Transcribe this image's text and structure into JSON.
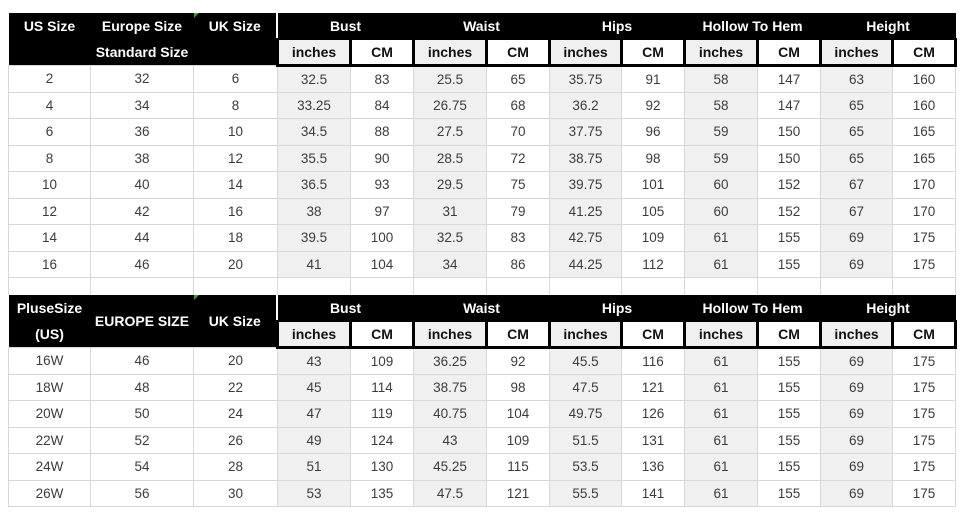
{
  "colors": {
    "header_bg": "#000000",
    "header_text": "#ffffff",
    "shaded_column_bg": "#f0f0f0",
    "cell_bg": "#ffffff",
    "grid_border": "#d8d8d8",
    "data_text": "#3c3c3c",
    "comment_marker_green": "#3f9b35"
  },
  "units": {
    "inches": "inches",
    "cm": "CM"
  },
  "measure_groups": [
    "Bust",
    "Waist",
    "Hips",
    "Hollow To Hem",
    "Height"
  ],
  "standard_table": {
    "headers": {
      "us_line1": "US Size",
      "us_line2": "",
      "europe_line1": "Europe Size",
      "europe_line2": "Standard Size",
      "uk_line1": "UK Size",
      "uk_line2": ""
    },
    "rows": [
      [
        "2",
        "32",
        "6",
        "32.5",
        "83",
        "25.5",
        "65",
        "35.75",
        "91",
        "58",
        "147",
        "63",
        "160"
      ],
      [
        "4",
        "34",
        "8",
        "33.25",
        "84",
        "26.75",
        "68",
        "36.2",
        "92",
        "58",
        "147",
        "65",
        "160"
      ],
      [
        "6",
        "36",
        "10",
        "34.5",
        "88",
        "27.5",
        "70",
        "37.75",
        "96",
        "59",
        "150",
        "65",
        "165"
      ],
      [
        "8",
        "38",
        "12",
        "35.5",
        "90",
        "28.5",
        "72",
        "38.75",
        "98",
        "59",
        "150",
        "65",
        "165"
      ],
      [
        "10",
        "40",
        "14",
        "36.5",
        "93",
        "29.5",
        "75",
        "39.75",
        "101",
        "60",
        "152",
        "67",
        "170"
      ],
      [
        "12",
        "42",
        "16",
        "38",
        "97",
        "31",
        "79",
        "41.25",
        "105",
        "60",
        "152",
        "67",
        "170"
      ],
      [
        "14",
        "44",
        "18",
        "39.5",
        "100",
        "32.5",
        "83",
        "42.75",
        "109",
        "61",
        "155",
        "69",
        "175"
      ],
      [
        "16",
        "46",
        "20",
        "41",
        "104",
        "34",
        "86",
        "44.25",
        "112",
        "61",
        "155",
        "69",
        "175"
      ]
    ]
  },
  "plus_table": {
    "headers": {
      "size_line1": "PluseSize",
      "size_line2": "(US)",
      "europe": "EUROPE SIZE",
      "uk": "UK Size"
    },
    "rows": [
      [
        "16W",
        "46",
        "20",
        "43",
        "109",
        "36.25",
        "92",
        "45.5",
        "116",
        "61",
        "155",
        "69",
        "175"
      ],
      [
        "18W",
        "48",
        "22",
        "45",
        "114",
        "38.75",
        "98",
        "47.5",
        "121",
        "61",
        "155",
        "69",
        "175"
      ],
      [
        "20W",
        "50",
        "24",
        "47",
        "119",
        "40.75",
        "104",
        "49.75",
        "126",
        "61",
        "155",
        "69",
        "175"
      ],
      [
        "22W",
        "52",
        "26",
        "49",
        "124",
        "43",
        "109",
        "51.5",
        "131",
        "61",
        "155",
        "69",
        "175"
      ],
      [
        "24W",
        "54",
        "28",
        "51",
        "130",
        "45.25",
        "115",
        "53.5",
        "136",
        "61",
        "155",
        "69",
        "175"
      ],
      [
        "26W",
        "56",
        "30",
        "53",
        "135",
        "47.5",
        "121",
        "55.5",
        "141",
        "61",
        "155",
        "69",
        "175"
      ]
    ]
  }
}
